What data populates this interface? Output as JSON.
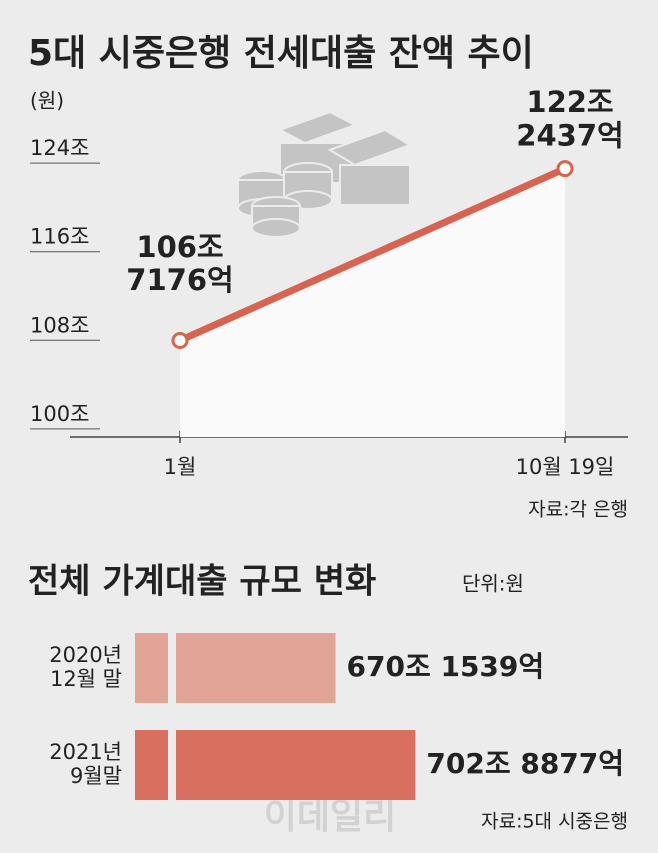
{
  "chart_data": [
    {
      "type": "line",
      "title": "5대 시중은행 전세대출 잔액 추이",
      "unit": "(원)",
      "categories": [
        "1월",
        "10월 19일"
      ],
      "series": [
        {
          "color": "#d9634f",
          "values": [
            106.7176,
            122.2437
          ],
          "value_labels": [
            "106조\n7176억",
            "122조\n2437억"
          ]
        }
      ],
      "ylim": [
        98,
        126
      ],
      "yticks": [
        {
          "value": 100,
          "label": "100조"
        },
        {
          "value": 108,
          "label": "108조"
        },
        {
          "value": 116,
          "label": "116조"
        },
        {
          "value": 124,
          "label": "124조"
        }
      ],
      "source": "자료:각 은행"
    },
    {
      "type": "hbar",
      "title": "전체 가계대출 규모 변화",
      "unit": "단위:원",
      "categories": [
        "2020년\n12월 말",
        "2021년\n9월말"
      ],
      "values": [
        670.1539,
        702.8877
      ],
      "value_labels": [
        "670조 1539억",
        "702조 8877억"
      ],
      "colors": [
        "#e1a497",
        "#d96f5e"
      ],
      "xlim": [
        588,
        790
      ],
      "source": "자료:5대 시중은행",
      "watermark": "이데일리"
    }
  ]
}
